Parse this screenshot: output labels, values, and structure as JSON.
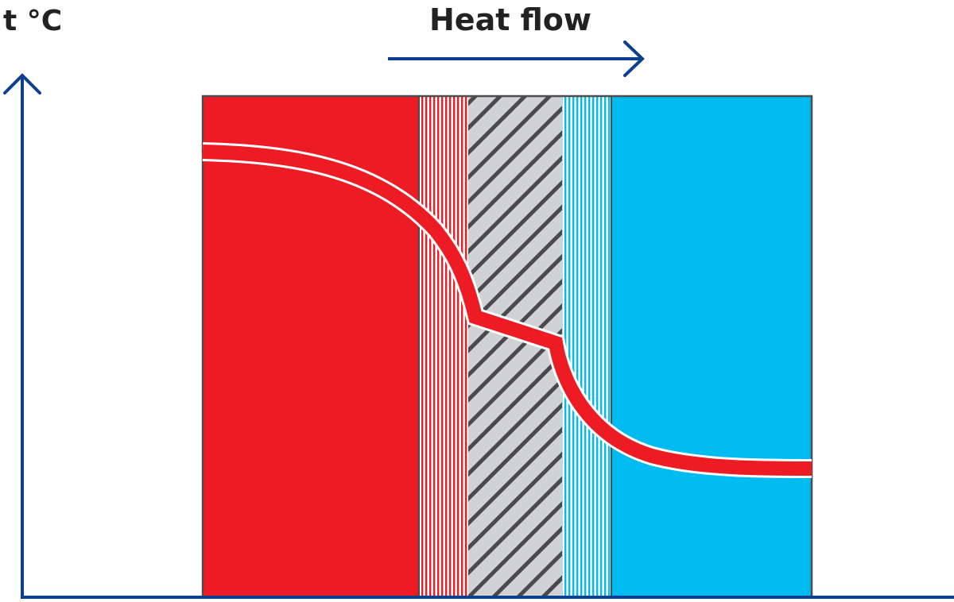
{
  "labels": {
    "y_axis": "t °C",
    "heat_flow": "Heat flow"
  },
  "colors": {
    "axis": "#0d3f8f",
    "hot_zone": "#ed1c24",
    "cold_zone": "#00bbf0",
    "insulation": "#d1d2d4",
    "hatch": "#4a4a4c",
    "border": "#4d4d4f",
    "temperature_line": "#ed1c24",
    "temperature_line_outline": "#ffffff"
  },
  "layers": [
    {
      "name": "hot-zone",
      "fill": "solid-red"
    },
    {
      "name": "red-transition",
      "fill": "red-white-stripes"
    },
    {
      "name": "insulation",
      "fill": "diagonal-hatch"
    },
    {
      "name": "blue-transition",
      "fill": "blue-white-stripes"
    },
    {
      "name": "cold-zone",
      "fill": "solid-blue"
    }
  ],
  "icons": {
    "heat_flow_arrow": "arrow-right-icon",
    "y_axis_arrow": "arrow-up-icon"
  }
}
